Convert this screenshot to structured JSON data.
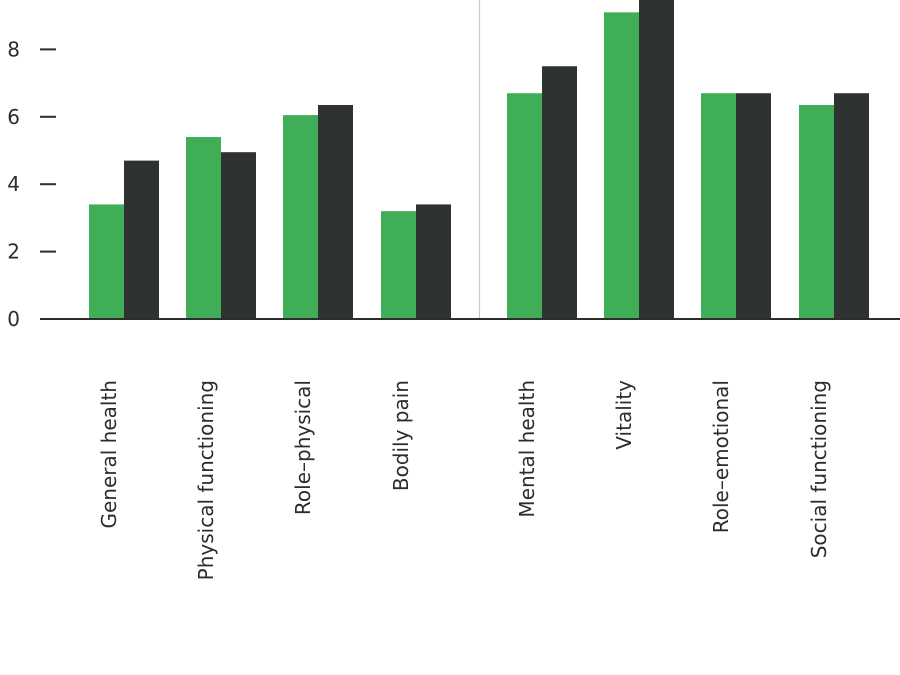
{
  "chart_data": {
    "type": "bar",
    "categories": [
      "General health",
      "Physical functioning",
      "Role–physical",
      "Bodily pain",
      "Mental health",
      "Vitality",
      "Role–emotional",
      "Social functioning"
    ],
    "series": [
      {
        "values": [
          3.4,
          5.4,
          6.05,
          3.2,
          6.7,
          9.1,
          6.7,
          6.35
        ]
      },
      {
        "values": [
          4.7,
          4.95,
          6.35,
          3.4,
          7.5,
          10.0,
          6.7,
          6.7
        ]
      }
    ],
    "yticks": [
      "0",
      "2",
      "4",
      "6",
      "8"
    ],
    "ylim": [
      0,
      10
    ],
    "grid": false,
    "group_divider_after_category": 4,
    "colors": {
      "series1": "#3fae57",
      "series2": "#2e3331",
      "axis": "#2d2d2d",
      "divider": "#c8c8c8"
    }
  }
}
